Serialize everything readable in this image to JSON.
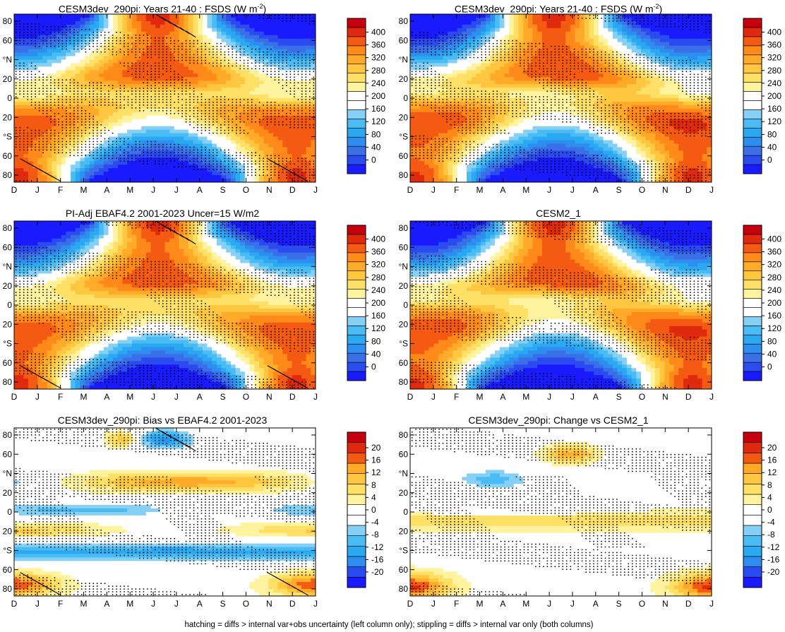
{
  "footer": "hatching = diffs > internal var+obs uncertainty (left column only); stippling = diffs > internal var only (both columns)",
  "colors": {
    "abs_scale": [
      "#1a1aff",
      "#2a4bf0",
      "#3a6fe8",
      "#2d8ef0",
      "#2aa8f2",
      "#49bcf4",
      "#86d0f6",
      "#ffffff",
      "#ffffff",
      "#fff3a0",
      "#ffe066",
      "#ffc640",
      "#ffaa28",
      "#ff8a1a",
      "#f55a12",
      "#e02a0e",
      "#c8000e"
    ],
    "diff_scale": [
      "#1a1aff",
      "#2a4bf0",
      "#2d8ef0",
      "#2aa8f2",
      "#49bcf4",
      "#86d0f6",
      "#ffffff",
      "#ffffff",
      "#fff3a0",
      "#ffe066",
      "#ffc640",
      "#ffaa28",
      "#f55a12",
      "#e02a0e",
      "#c8000e"
    ]
  },
  "chart_data": [
    {
      "type": "heatmap",
      "kind": "abs",
      "title": "CESM3dev_290pi: Years 21-40 : FSDS (W m",
      "title_sup": "-2",
      "title_end": ")",
      "x_ticks": [
        "D",
        "J",
        "F",
        "M",
        "A",
        "M",
        "J",
        "J",
        "A",
        "S",
        "O",
        "N",
        "D",
        "J"
      ],
      "y_ticks": [
        "80",
        "60",
        "°N",
        "20",
        "0",
        "20",
        "°S",
        "60",
        "80"
      ],
      "colorbar_ticks": [
        "400",
        "360",
        "320",
        "280",
        "240",
        "200",
        "160",
        "120",
        "80",
        "40",
        "0"
      ],
      "range": [
        -20,
        420
      ],
      "hatching": true,
      "stippling": true
    },
    {
      "type": "heatmap",
      "kind": "abs",
      "title": "CESM3dev_290pi: Years 21-40 : FSDS (W m",
      "title_sup": "-2",
      "title_end": ")",
      "x_ticks": [
        "D",
        "J",
        "F",
        "M",
        "A",
        "M",
        "J",
        "J",
        "A",
        "S",
        "O",
        "N",
        "D",
        "J"
      ],
      "y_ticks": [
        "80",
        "60",
        "°N",
        "20",
        "0",
        "20",
        "°S",
        "60",
        "80"
      ],
      "colorbar_ticks": [
        "400",
        "360",
        "320",
        "280",
        "240",
        "200",
        "160",
        "120",
        "80",
        "40",
        "0"
      ],
      "range": [
        -20,
        420
      ],
      "hatching": false,
      "stippling": true
    },
    {
      "type": "heatmap",
      "kind": "abs",
      "title": "PI-Adj EBAF4.2 2001-2023 Uncer=15 W/m2",
      "x_ticks": [
        "D",
        "J",
        "F",
        "M",
        "A",
        "M",
        "J",
        "J",
        "A",
        "S",
        "O",
        "N",
        "D",
        "J"
      ],
      "y_ticks": [
        "80",
        "60",
        "°N",
        "20",
        "0",
        "20",
        "°S",
        "60",
        "80"
      ],
      "colorbar_ticks": [
        "400",
        "360",
        "320",
        "280",
        "240",
        "200",
        "160",
        "120",
        "80",
        "40",
        "0"
      ],
      "range": [
        -20,
        420
      ],
      "hatching": true,
      "stippling": true
    },
    {
      "type": "heatmap",
      "kind": "abs",
      "title": "CESM2_1",
      "x_ticks": [
        "D",
        "J",
        "F",
        "M",
        "A",
        "M",
        "J",
        "J",
        "A",
        "S",
        "O",
        "N",
        "D",
        "J"
      ],
      "y_ticks": [
        "80",
        "60",
        "°N",
        "20",
        "0",
        "20",
        "°S",
        "60",
        "80"
      ],
      "colorbar_ticks": [
        "400",
        "360",
        "320",
        "280",
        "240",
        "200",
        "160",
        "120",
        "80",
        "40",
        "0"
      ],
      "range": [
        -20,
        420
      ],
      "hatching": false,
      "stippling": true
    },
    {
      "type": "heatmap",
      "kind": "diff",
      "title": "CESM3dev_290pi: Bias vs EBAF4.2 2001-2023",
      "x_ticks": [
        "D",
        "J",
        "F",
        "M",
        "A",
        "M",
        "J",
        "J",
        "A",
        "S",
        "O",
        "N",
        "D",
        "J"
      ],
      "y_ticks": [
        "80",
        "60",
        "°N",
        "20",
        "0",
        "20",
        "°S",
        "60",
        "80"
      ],
      "colorbar_ticks": [
        "20",
        "16",
        "12",
        "8",
        "4",
        "0",
        "-4",
        "-8",
        "-12",
        "-16",
        "-20"
      ],
      "range": [
        -22,
        22
      ],
      "hatching": true,
      "stippling": true
    },
    {
      "type": "heatmap",
      "kind": "diff",
      "title": "CESM3dev_290pi: Change vs CESM2_1",
      "x_ticks": [
        "D",
        "J",
        "F",
        "M",
        "A",
        "M",
        "J",
        "J",
        "A",
        "S",
        "O",
        "N",
        "D",
        "J"
      ],
      "y_ticks": [
        "80",
        "60",
        "°N",
        "20",
        "0",
        "20",
        "°S",
        "60",
        "80"
      ],
      "colorbar_ticks": [
        "20",
        "16",
        "12",
        "8",
        "4",
        "0",
        "-4",
        "-8",
        "-12",
        "-16",
        "-20"
      ],
      "range": [
        -22,
        22
      ],
      "hatching": false,
      "stippling": true
    }
  ]
}
